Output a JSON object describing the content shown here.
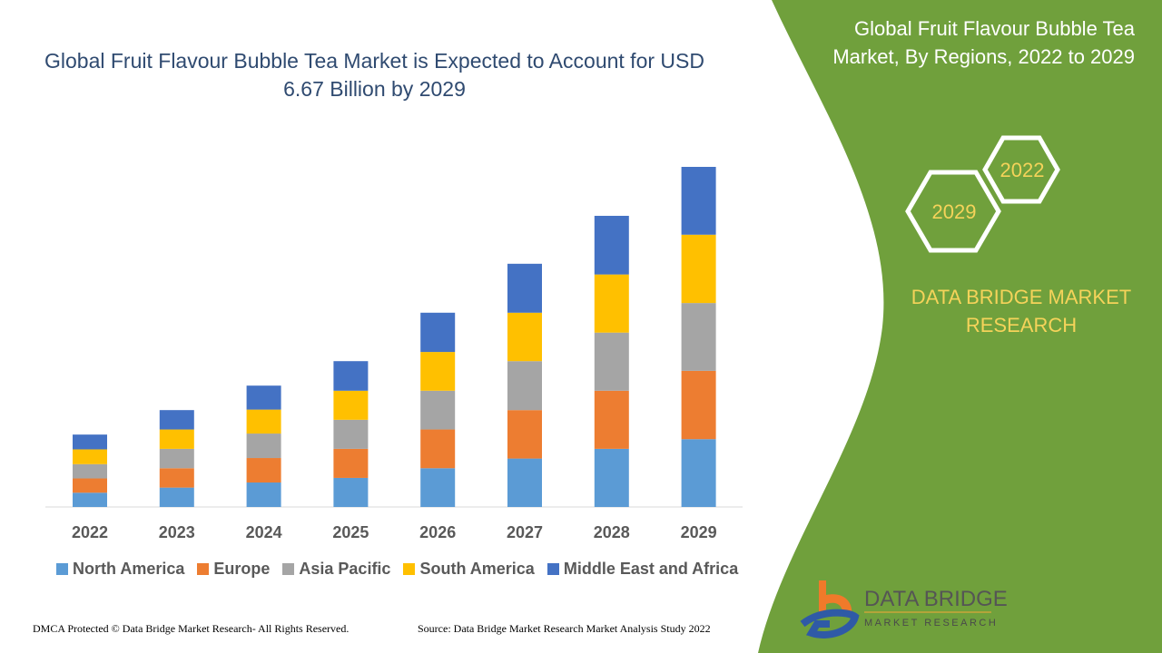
{
  "chart_data": {
    "type": "bar",
    "stacked": true,
    "title": "Global Fruit Flavour Bubble Tea Market is Expected to Account for USD 6.67 Billion by 2029",
    "categories": [
      "2022",
      "2023",
      "2024",
      "2025",
      "2026",
      "2027",
      "2028",
      "2029"
    ],
    "series": [
      {
        "name": "North America",
        "color": "#5b9bd5",
        "values": [
          0.28,
          0.38,
          0.48,
          0.57,
          0.76,
          0.95,
          1.14,
          1.33
        ]
      },
      {
        "name": "Europe",
        "color": "#ed7d31",
        "values": [
          0.28,
          0.38,
          0.48,
          0.57,
          0.76,
          0.95,
          1.14,
          1.34
        ]
      },
      {
        "name": "Asia Pacific",
        "color": "#a5a5a5",
        "values": [
          0.28,
          0.38,
          0.48,
          0.57,
          0.76,
          0.96,
          1.14,
          1.33
        ]
      },
      {
        "name": "South America",
        "color": "#ffc000",
        "values": [
          0.29,
          0.38,
          0.47,
          0.57,
          0.76,
          0.95,
          1.14,
          1.34
        ]
      },
      {
        "name": "Middle East and Africa",
        "color": "#4472c4",
        "values": [
          0.29,
          0.38,
          0.47,
          0.58,
          0.77,
          0.96,
          1.15,
          1.33
        ]
      }
    ],
    "ylim": [
      0,
      6.67
    ],
    "grid": false,
    "legend": "bottom"
  },
  "panel": {
    "title": "Global Fruit Flavour Bubble Tea Market, By Regions, 2022 to 2029",
    "hex_a": "2022",
    "hex_b": "2029",
    "brand": "DATA BRIDGE MARKET RESEARCH",
    "bg": "#70a03c"
  },
  "logo": {
    "name": "DATA BRIDGE",
    "sub": "MARKET RESEARCH"
  },
  "footer": {
    "left": "DMCA Protected © Data Bridge Market Research- All Rights Reserved.",
    "right": "Source: Data Bridge Market Research Market Analysis Study 2022"
  }
}
